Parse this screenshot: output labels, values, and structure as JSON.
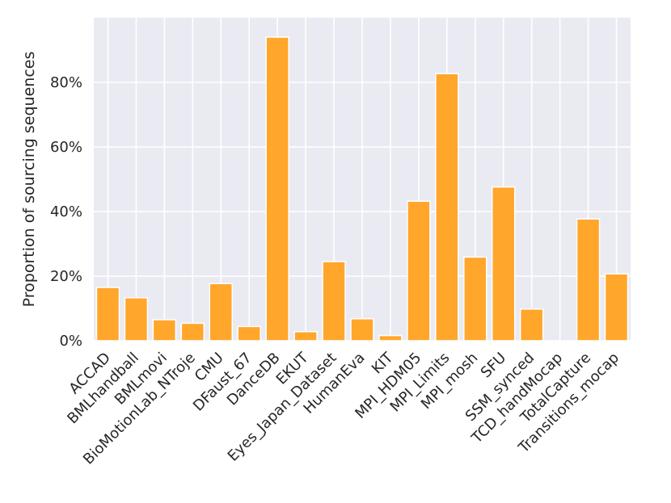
{
  "chart_data": {
    "type": "bar",
    "title": "",
    "xlabel": "",
    "ylabel": "Proportion of sourcing sequences",
    "ylim": [
      0,
      100
    ],
    "y_ticks": [
      0,
      20,
      40,
      60,
      80
    ],
    "y_tick_format": "percent",
    "grid": true,
    "legend": "none",
    "colors": {
      "bar": "#ffa62b",
      "bar_edge": "#ffffff",
      "background": "#eaeaf2",
      "grid": "#ffffff",
      "text": "#262626"
    },
    "categories": [
      "ACCAD",
      "BMLhandball",
      "BMLmovi",
      "BioMotionLab_NTroje",
      "CMU",
      "DFaust_67",
      "DanceDB",
      "EKUT",
      "Eyes_Japan_Dataset",
      "HumanEva",
      "KIT",
      "MPI_HDM05",
      "MPI_Limits",
      "MPI_mosh",
      "SFU",
      "SSM_synced",
      "TCD_handMocap",
      "TotalCapture",
      "Transitions_mocap"
    ],
    "values": [
      16.5,
      13.3,
      6.5,
      5.4,
      17.7,
      4.4,
      94.0,
      2.8,
      24.5,
      6.8,
      1.6,
      43.2,
      82.7,
      25.9,
      47.6,
      9.8,
      0,
      37.7,
      20.7
    ]
  }
}
